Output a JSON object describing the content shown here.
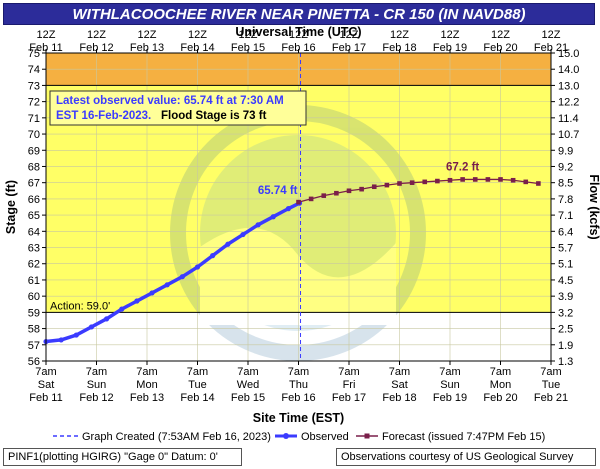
{
  "title": "WITHLACOOCHEE RIVER NEAR PINETTA - CR 150 (IN NAVD88)",
  "top_axis_title": "Universal Time (UTC)",
  "info_box": {
    "line1": "Latest observed value: 65.74 ft at 7:30 AM",
    "line2": "EST 16-Feb-2023.",
    "flood_stage": "Flood Stage is 73 ft"
  },
  "legend": {
    "created": "Graph Created (7:53AM Feb 16, 2023)",
    "observed": "Observed",
    "forecast": "Forecast (issued 7:47PM Feb 15)"
  },
  "footer": {
    "left": "PINF1(plotting HGIRG) \"Gage 0\" Datum: 0'",
    "right": "Observations courtesy of US Geological Survey"
  },
  "colors": {
    "title_bg": "#2c2c9a",
    "observed": "#3b3bff",
    "forecast": "#7a1f4a",
    "flood_zone": "#ffff66",
    "moderate_zone": "#f5b041",
    "info_text": "#3b3bff"
  },
  "chart_data": {
    "type": "line",
    "xlabel": "Site Time (EST)",
    "ylabel": "Stage (ft)",
    "y2label": "Flow (kcfs)",
    "ylim": [
      56,
      75
    ],
    "xlim_days": [
      0,
      10
    ],
    "x_ticks_days": [
      0,
      1,
      2,
      3,
      4,
      5,
      6,
      7,
      8,
      9,
      10
    ],
    "x_ticks_bottom": [
      [
        "7am",
        "Sat",
        "Feb 11"
      ],
      [
        "7am",
        "Sun",
        "Feb 12"
      ],
      [
        "7am",
        "Mon",
        "Feb 13"
      ],
      [
        "7am",
        "Tue",
        "Feb 14"
      ],
      [
        "7am",
        "Wed",
        "Feb 15"
      ],
      [
        "7am",
        "Thu",
        "Feb 16"
      ],
      [
        "7am",
        "Fri",
        "Feb 17"
      ],
      [
        "7am",
        "Sat",
        "Feb 18"
      ],
      [
        "7am",
        "Sun",
        "Feb 19"
      ],
      [
        "7am",
        "Mon",
        "Feb 20"
      ],
      [
        "7am",
        "Tue",
        "Feb 21"
      ]
    ],
    "x_ticks_top": [
      [
        "12Z",
        "Feb 11"
      ],
      [
        "12Z",
        "Feb 12"
      ],
      [
        "12Z",
        "Feb 13"
      ],
      [
        "12Z",
        "Feb 14"
      ],
      [
        "12Z",
        "Feb 15"
      ],
      [
        "12Z",
        "Feb 16"
      ],
      [
        "12Z",
        "Feb 17"
      ],
      [
        "12Z",
        "Feb 18"
      ],
      [
        "12Z",
        "Feb 19"
      ],
      [
        "12Z",
        "Feb 20"
      ],
      [
        "12Z",
        "Feb 21"
      ]
    ],
    "y_ticks": [
      56,
      57,
      58,
      59,
      60,
      61,
      62,
      63,
      64,
      65,
      66,
      67,
      68,
      69,
      70,
      71,
      72,
      73,
      74,
      75
    ],
    "y2_ticks": [
      {
        "stage": 56,
        "label": "1.3"
      },
      {
        "stage": 57,
        "label": "1.9"
      },
      {
        "stage": 58,
        "label": "2.5"
      },
      {
        "stage": 59,
        "label": "3.2"
      },
      {
        "stage": 60,
        "label": "3.9"
      },
      {
        "stage": 61,
        "label": "4.5"
      },
      {
        "stage": 62,
        "label": "5.1"
      },
      {
        "stage": 63,
        "label": "5.7"
      },
      {
        "stage": 64,
        "label": "6.4"
      },
      {
        "stage": 65,
        "label": "7.1"
      },
      {
        "stage": 66,
        "label": "7.8"
      },
      {
        "stage": 67,
        "label": "8.5"
      },
      {
        "stage": 68,
        "label": "9.2"
      },
      {
        "stage": 69,
        "label": "9.9"
      },
      {
        "stage": 70,
        "label": "10.7"
      },
      {
        "stage": 71,
        "label": "11.4"
      },
      {
        "stage": 72,
        "label": "12.2"
      },
      {
        "stage": 73,
        "label": "13.0"
      },
      {
        "stage": 74,
        "label": "14.0"
      },
      {
        "stage": 75,
        "label": "15.0"
      }
    ],
    "action_stage": 59,
    "action_label": "Action: 59.0'",
    "flood_stage": 73,
    "moderate_stage": 74,
    "graph_created_day": 5.04,
    "observed_end_label": "65.74 ft",
    "forecast_peak_label": "67.2 ft",
    "series": [
      {
        "name": "Observed",
        "x": [
          0,
          0.3,
          0.6,
          0.9,
          1.2,
          1.5,
          1.8,
          2.1,
          2.4,
          2.7,
          3.0,
          3.3,
          3.6,
          3.9,
          4.2,
          4.5,
          4.8,
          5.02
        ],
        "y": [
          57.2,
          57.3,
          57.6,
          58.1,
          58.6,
          59.2,
          59.7,
          60.2,
          60.7,
          61.2,
          61.8,
          62.5,
          63.2,
          63.8,
          64.4,
          64.9,
          65.4,
          65.74
        ]
      },
      {
        "name": "Forecast (issued 7:47PM Feb 15)",
        "x": [
          5.0,
          5.25,
          5.5,
          5.75,
          6.0,
          6.25,
          6.5,
          6.75,
          7.0,
          7.25,
          7.5,
          7.75,
          8.0,
          8.25,
          8.5,
          8.75,
          9.0,
          9.25,
          9.5,
          9.75
        ],
        "y": [
          65.8,
          66.0,
          66.2,
          66.35,
          66.5,
          66.6,
          66.75,
          66.85,
          66.95,
          67.0,
          67.05,
          67.1,
          67.15,
          67.2,
          67.2,
          67.2,
          67.2,
          67.15,
          67.05,
          66.95
        ]
      }
    ]
  }
}
